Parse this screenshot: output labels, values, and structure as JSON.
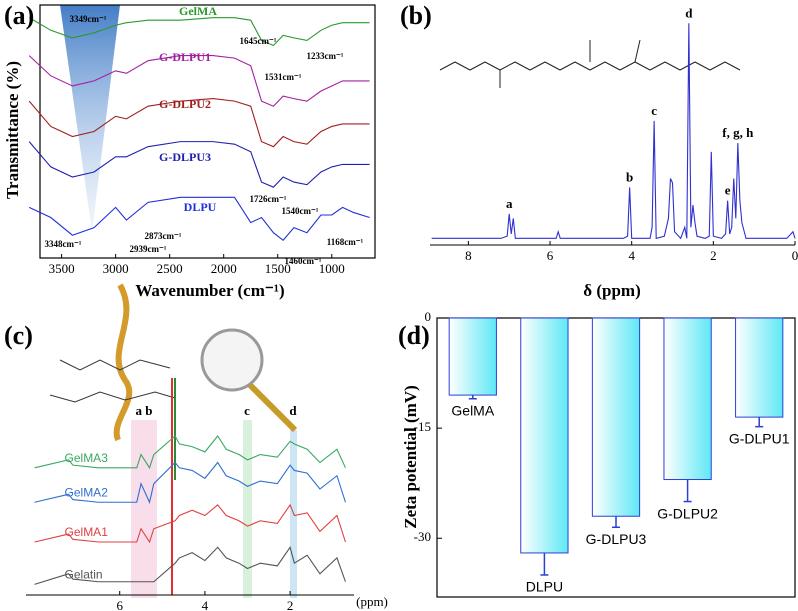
{
  "chart_data": [
    {
      "type": "line",
      "panel_label": "(a)",
      "xlabel": "Wavenumber (cm⁻¹)",
      "ylabel": "Transmittance (%)",
      "x": [
        3800,
        3600,
        3400,
        3200,
        3000,
        2900,
        2700,
        2400,
        2100,
        1900,
        1750,
        1650,
        1540,
        1450,
        1350,
        1230,
        1100,
        1000,
        900,
        800,
        650
      ],
      "xlim": [
        3700,
        600
      ],
      "xticks": [
        3500,
        3000,
        2500,
        2000,
        1500,
        1000
      ],
      "ylim": [
        0,
        100
      ],
      "series": [
        {
          "name": "GelMA",
          "color": "#2a9a2a",
          "values": [
            95,
            90,
            87,
            89,
            92,
            93,
            94,
            94,
            95,
            95,
            94,
            86,
            84,
            88,
            87,
            86,
            90,
            92,
            93,
            93,
            93
          ]
        },
        {
          "name": "G-DLPU1",
          "color": "#a020a0",
          "values": [
            80,
            72,
            68,
            70,
            74,
            73,
            78,
            80,
            80,
            79,
            76,
            62,
            60,
            64,
            63,
            62,
            66,
            68,
            70,
            70,
            70
          ]
        },
        {
          "name": "G-DLPU2",
          "color": "#a02020",
          "values": [
            62,
            52,
            48,
            50,
            56,
            55,
            60,
            62,
            63,
            62,
            60,
            46,
            44,
            48,
            46,
            45,
            50,
            52,
            53,
            53,
            53
          ]
        },
        {
          "name": "G-DLPU3",
          "color": "#2020b0",
          "values": [
            46,
            36,
            32,
            34,
            40,
            40,
            44,
            46,
            46,
            45,
            42,
            30,
            28,
            32,
            30,
            29,
            34,
            36,
            37,
            37,
            37
          ]
        },
        {
          "name": "DLPU",
          "color": "#2030d8",
          "values": [
            20,
            16,
            9,
            12,
            20,
            15,
            22,
            24,
            24,
            24,
            14,
            16,
            10,
            7,
            12,
            10,
            17,
            17,
            20,
            18,
            16
          ]
        }
      ],
      "annotations": [
        "3349cm⁻¹",
        "1645cm⁻¹",
        "1531cm⁻¹",
        "1233cm⁻¹",
        "1726cm⁻¹",
        "1540cm⁻¹",
        "2873cm⁻¹",
        "2939cm⁻¹",
        "1460cm⁻¹",
        "1168cm⁻¹",
        "3348cm⁻¹"
      ]
    },
    {
      "type": "line",
      "panel_label": "(b)",
      "xlabel": "δ (ppm)",
      "x": [
        8.9,
        7.2,
        7.05,
        7.0,
        6.95,
        6.9,
        6.85,
        6.5,
        5.85,
        5.8,
        5.75,
        4.2,
        4.1,
        4.05,
        4.0,
        3.55,
        3.5,
        3.45,
        3.4,
        3.2,
        3.1,
        3.05,
        3.0,
        2.95,
        2.8,
        2.7,
        2.65,
        2.6,
        2.55,
        2.5,
        2.45,
        2.4,
        2.2,
        2.1,
        2.05,
        2.0,
        1.8,
        1.7,
        1.65,
        1.6,
        1.55,
        1.5,
        1.45,
        1.4,
        1.35,
        1.3,
        1.2,
        0.2,
        0.05,
        0
      ],
      "xlim": [
        8.94,
        0
      ],
      "xticks": [
        8,
        6,
        4,
        2,
        0
      ],
      "ylim": [
        0,
        106
      ],
      "series": [
        {
          "color": "#3030d0",
          "values": [
            3,
            3,
            4,
            14,
            5,
            12,
            3,
            3,
            3,
            6,
            3,
            3,
            4,
            26,
            3,
            3,
            8,
            56,
            3,
            4,
            12,
            30,
            28,
            6,
            3,
            8,
            3,
            100,
            8,
            18,
            10,
            4,
            3,
            4,
            42,
            4,
            3,
            5,
            20,
            5,
            8,
            30,
            12,
            46,
            20,
            10,
            3,
            3,
            6,
            3
          ]
        }
      ],
      "annotations": [
        "a",
        "b",
        "c",
        "d",
        "e",
        "f, g, h"
      ]
    },
    {
      "type": "line",
      "panel_label": "(c)",
      "xlabel": "(ppm)",
      "x": [
        8,
        7.2,
        7.1,
        6.5,
        5.6,
        5.5,
        5.3,
        5.2,
        4.7,
        4.6,
        4.3,
        4.0,
        3.7,
        3.5,
        3.2,
        3.0,
        2.7,
        2.3,
        2.0,
        1.9,
        1.6,
        1.3,
        0.9,
        0.7
      ],
      "xlim": [
        8.2,
        0.5
      ],
      "xticks": [
        6,
        4,
        2
      ],
      "ylim": [
        0,
        100
      ],
      "series": [
        {
          "name": "GelMA3",
          "color": "#3aa860",
          "values": [
            48,
            51,
            49,
            48,
            48,
            53,
            48,
            53,
            60,
            57,
            56,
            54,
            60,
            55,
            53,
            51,
            53,
            52,
            58,
            57,
            55,
            50,
            55,
            48
          ]
        },
        {
          "name": "GelMA2",
          "color": "#2f6fd0",
          "values": [
            35,
            38,
            36,
            35,
            35,
            42,
            35,
            42,
            50,
            48,
            47,
            44,
            50,
            45,
            43,
            41,
            43,
            42,
            49,
            47,
            46,
            40,
            45,
            35
          ]
        },
        {
          "name": "GelMA1",
          "color": "#e04040",
          "values": [
            20,
            23,
            21,
            20,
            20,
            25,
            20,
            25,
            28,
            30,
            32,
            30,
            34,
            30,
            28,
            26,
            28,
            27,
            34,
            30,
            31,
            24,
            30,
            20
          ]
        },
        {
          "name": "Gelatin",
          "color": "#555555",
          "values": [
            4,
            8,
            6,
            5,
            5,
            5,
            5,
            5,
            12,
            14,
            16,
            13,
            18,
            14,
            12,
            10,
            12,
            11,
            18,
            12,
            15,
            8,
            14,
            5
          ]
        }
      ],
      "annotations": [
        "a b",
        "c",
        "d"
      ]
    },
    {
      "type": "bar",
      "panel_label": "(d)",
      "ylabel": "Zeta potential (mV)",
      "categories": [
        "GelMA",
        "DLPU",
        "G-DLPU3",
        "G-DLPU2",
        "G-DLPU1"
      ],
      "values": [
        -10.5,
        -32,
        -27,
        -22,
        -13.5
      ],
      "errors": [
        0.5,
        3,
        1.5,
        3,
        1.3
      ],
      "color": "#bdf6fb",
      "edge_color": "#2a3fd6",
      "ylim": [
        -38,
        0
      ],
      "yticks": [
        0,
        -15,
        -30
      ]
    }
  ]
}
